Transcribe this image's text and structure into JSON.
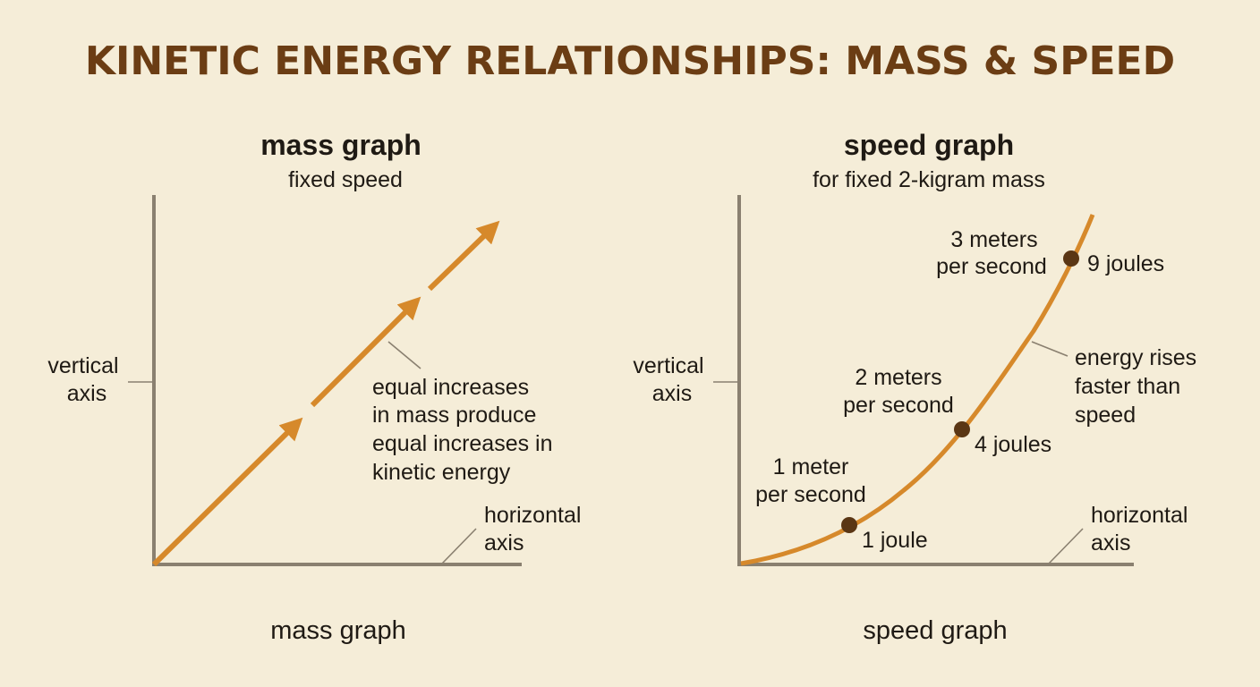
{
  "title": "KINETIC ENERGY RELATIONSHIPS: MASS & SPEED",
  "colors": {
    "background": "#f5edd8",
    "title": "#6b3d14",
    "accent": "#d6892b",
    "axis": "#8a8070",
    "point": "#5a3614"
  },
  "mass_graph": {
    "title": "mass graph",
    "subtitle": "fixed speed",
    "vertical_axis_label": [
      "vertical",
      "axis"
    ],
    "horizontal_axis_label": [
      "horizontal",
      "axis"
    ],
    "annotation": [
      "equal increases",
      "in mass produce",
      "equal increases in",
      "kinetic energy"
    ],
    "caption": "mass graph",
    "arrow_icon": "arrow-icon"
  },
  "speed_graph": {
    "title": "speed graph",
    "subtitle": "for fixed 2-kigram mass",
    "vertical_axis_label": [
      "vertical",
      "axis"
    ],
    "horizontal_axis_label": [
      "horizontal",
      "axis"
    ],
    "annotation": [
      "energy rises",
      "faster than",
      "speed"
    ],
    "caption": "speed graph",
    "points": [
      {
        "speed_label": [
          "1 meter",
          "per second"
        ],
        "energy_label": "1 joule"
      },
      {
        "speed_label": [
          "2 meters",
          "per second"
        ],
        "energy_label": "4 joules"
      },
      {
        "speed_label": [
          "3 meters",
          "per second"
        ],
        "energy_label": "9 joules"
      }
    ]
  }
}
